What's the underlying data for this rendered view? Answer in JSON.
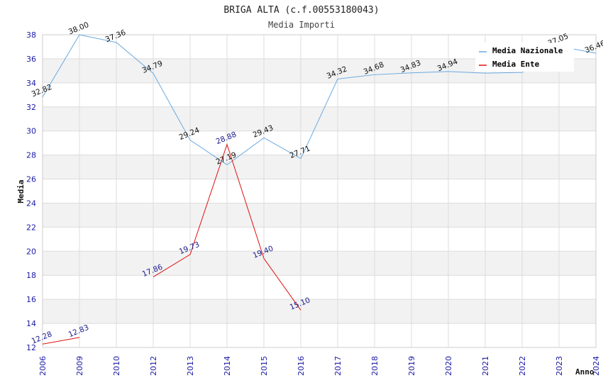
{
  "chart_data": {
    "type": "line",
    "title": "BRIGA ALTA (c.f.00553180043)",
    "subtitle": "Media Importi",
    "xlabel": "Anno",
    "ylabel": "Media",
    "ylim": [
      12,
      38
    ],
    "yticks": [
      12,
      14,
      16,
      18,
      20,
      22,
      24,
      26,
      28,
      30,
      32,
      34,
      36,
      38
    ],
    "categories": [
      "2006",
      "2009",
      "2010",
      "2012",
      "2013",
      "2014",
      "2015",
      "2016",
      "2017",
      "2018",
      "2019",
      "2020",
      "2021",
      "2022",
      "2023",
      "2024"
    ],
    "series": [
      {
        "name": "Media Nazionale",
        "color": "#6aaae0",
        "values": [
          32.82,
          38.0,
          37.36,
          34.79,
          29.24,
          27.19,
          29.43,
          27.71,
          34.32,
          34.68,
          34.83,
          34.94,
          34.81,
          34.87,
          37.05,
          36.46
        ],
        "labels": [
          "32.82",
          "38.00",
          "37.36",
          "34.79",
          "29.24",
          "27.19",
          "29.43",
          "27.71",
          "34.32",
          "34.68",
          "34.83",
          "34.94",
          "",
          "",
          "37.05",
          "36.46"
        ]
      },
      {
        "name": "Media Ente",
        "color": "#e01010",
        "values": [
          12.28,
          12.83,
          null,
          17.86,
          19.73,
          28.88,
          19.4,
          15.1,
          null,
          null,
          null,
          null,
          null,
          null,
          null,
          null
        ],
        "labels": [
          "12.28",
          "12.83",
          "",
          "17.86",
          "19.73",
          "28.88",
          "19.40",
          "15.10",
          "",
          "",
          "",
          "",
          "",
          "",
          "",
          ""
        ]
      }
    ],
    "legend": {
      "position": "top-right"
    },
    "grid": true
  }
}
